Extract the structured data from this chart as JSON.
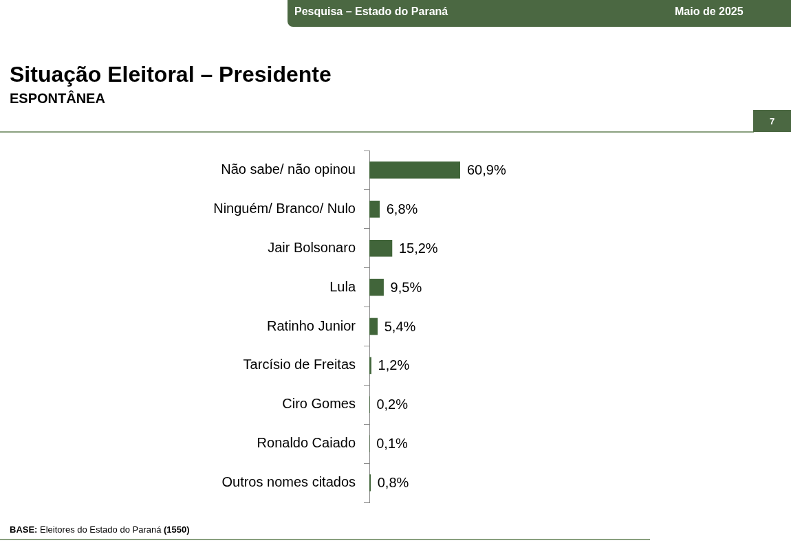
{
  "chart_data": {
    "type": "bar",
    "orientation": "horizontal",
    "title": "Situação Eleitoral – Presidente",
    "subtitle": "ESPONTÂNEA",
    "categories": [
      "Não sabe/ não opinou",
      "Ninguém/ Branco/ Nulo",
      "Jair Bolsonaro",
      "Lula",
      "Ratinho Junior",
      "Tarcísio de Freitas",
      "Ciro Gomes",
      "Ronaldo Caiado",
      "Outros nomes citados"
    ],
    "values": [
      60.9,
      6.8,
      15.2,
      9.5,
      5.4,
      1.2,
      0.2,
      0.1,
      0.8
    ],
    "value_labels": [
      "60,9%",
      "6,8%",
      "15,2%",
      "9,5%",
      "5,4%",
      "1,2%",
      "0,2%",
      "0,1%",
      "0,8%"
    ],
    "color": "#41653a",
    "tick_labels": "y",
    "annotations": [
      "Pesquisa – Estado do Paraná",
      "Maio de 2025",
      "7",
      "BASE: Eleitores do Estado do Paraná (1550)"
    ]
  }
}
